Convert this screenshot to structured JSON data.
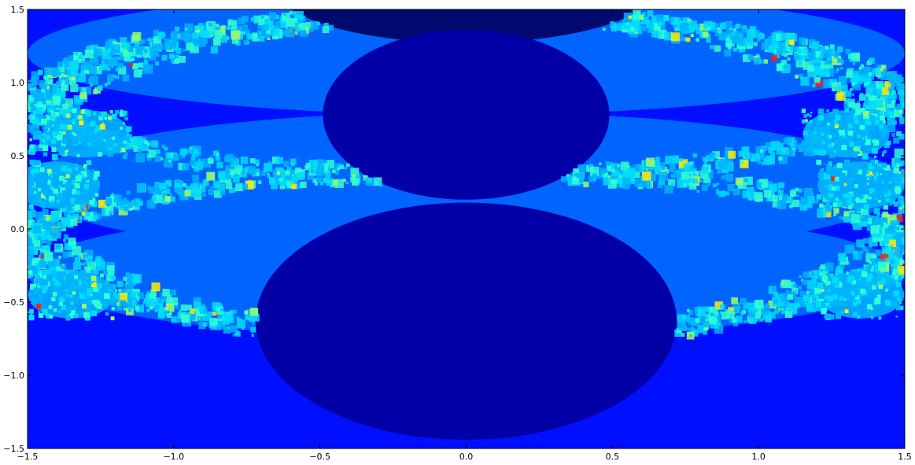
{
  "chart_data": {
    "type": "heatmap",
    "title": "",
    "xlabel": "",
    "ylabel": "",
    "xlim": [
      -1.5,
      1.5
    ],
    "ylim": [
      -1.5,
      1.5
    ],
    "x_ticks": [
      -1.5,
      -1.0,
      -0.5,
      0.0,
      0.5,
      1.0,
      1.5
    ],
    "y_ticks": [
      -1.5,
      -1.0,
      -0.5,
      0.0,
      0.5,
      1.0,
      1.5
    ],
    "x_tick_labels": [
      "−1.5",
      "−1.0",
      "−0.5",
      "0.0",
      "0.5",
      "1.0",
      "1.5"
    ],
    "y_tick_labels": [
      "−1.5",
      "−1.0",
      "−0.5",
      "0.0",
      "0.5",
      "1.0",
      "1.5"
    ],
    "grid": false,
    "legend": "none",
    "colormap": "jet",
    "colors": {
      "navy": "#000a6e",
      "dark_blue": "#0000a6",
      "blue": "#0000e6",
      "medium_blue": "#0010ff",
      "azure": "#0064ff",
      "sky": "#00b4ff",
      "cyan": "#00dcff",
      "aqua": "#30ffd0",
      "lime": "#a0ff60",
      "yellow": "#ffee00",
      "red": "#ff2000"
    },
    "regions": [
      {
        "name": "background",
        "color": "medium_blue"
      },
      {
        "name": "upper-band",
        "color": "azure",
        "cx": 0.0,
        "cy": 1.2,
        "rx": 1.5,
        "ry": 0.42
      },
      {
        "name": "middle-band",
        "color": "azure",
        "cx": 0.0,
        "cy": 0.3,
        "rx": 1.5,
        "ry": 0.5
      },
      {
        "name": "lower-band",
        "color": "azure",
        "cx": 0.0,
        "cy": -0.3,
        "rx": 1.5,
        "ry": 0.45
      },
      {
        "name": "top-cap",
        "color": "navy",
        "cx": 0.0,
        "cy": 1.65,
        "rx": 0.65,
        "ry": 0.38
      },
      {
        "name": "upper-bulb",
        "color": "dark_blue",
        "cx": 0.0,
        "cy": 0.78,
        "rx": 0.49,
        "ry": 0.58
      },
      {
        "name": "main-bulb",
        "color": "dark_blue",
        "cx": 0.0,
        "cy": -0.63,
        "rx": 0.72,
        "ry": 0.81
      }
    ],
    "escape_bands": [
      {
        "cx": 0.0,
        "cy": 0.35,
        "rx": 1.55,
        "ry": 1.15,
        "thickness": 0.08
      },
      {
        "cx": 0.0,
        "cy": -0.15,
        "rx": 1.5,
        "ry": 0.55,
        "thickness": 0.07
      },
      {
        "cx": 0.0,
        "cy": 0.9,
        "rx": 1.45,
        "ry": 0.55,
        "thickness": 0.07
      }
    ]
  }
}
